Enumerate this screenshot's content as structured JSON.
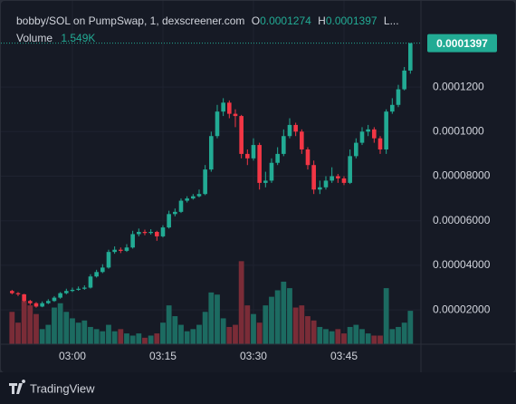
{
  "chart_data": {
    "type": "candlestick",
    "title": "bobby/SOL on PumpSwap, 1, dexscreener.com",
    "ohlc_labels": {
      "open": "O",
      "high": "H",
      "low": "L..."
    },
    "x": [
      "02:50",
      "02:51",
      "02:52",
      "02:53",
      "02:54",
      "02:55",
      "02:56",
      "02:57",
      "02:58",
      "02:59",
      "03:00",
      "03:01",
      "03:02",
      "03:03",
      "03:04",
      "03:05",
      "03:06",
      "03:07",
      "03:08",
      "03:09",
      "03:10",
      "03:11",
      "03:12",
      "03:13",
      "03:14",
      "03:15",
      "03:16",
      "03:17",
      "03:18",
      "03:19",
      "03:20",
      "03:21",
      "03:22",
      "03:23",
      "03:24",
      "03:25",
      "03:26",
      "03:27",
      "03:28",
      "03:29",
      "03:30",
      "03:31",
      "03:32",
      "03:33",
      "03:34",
      "03:35",
      "03:36",
      "03:37",
      "03:38",
      "03:39",
      "03:40",
      "03:41",
      "03:42",
      "03:43",
      "03:44",
      "03:45",
      "03:46",
      "03:47",
      "03:48",
      "03:49",
      "03:50",
      "03:51",
      "03:52",
      "03:53",
      "03:54",
      "03:55",
      "03:56"
    ],
    "open": [
      2.85e-05,
      2.75e-05,
      2.7e-05,
      2.4e-05,
      2.3e-05,
      2.15e-05,
      2.3e-05,
      2.4e-05,
      2.55e-05,
      2.75e-05,
      2.85e-05,
      2.9e-05,
      2.95e-05,
      3e-05,
      3.5e-05,
      3.7e-05,
      3.9e-05,
      4.6e-05,
      4.7e-05,
      4.65e-05,
      4.8e-05,
      5.4e-05,
      5.5e-05,
      5.45e-05,
      5.5e-05,
      5.3e-05,
      5.7e-05,
      6.3e-05,
      6.4e-05,
      6.9e-05,
      7e-05,
      7.1e-05,
      7.2e-05,
      8.3e-05,
      9.8e-05,
      0.000109,
      0.000113,
      0.000108,
      0.000107,
      9e-05,
      8.8e-05,
      9.4e-05,
      7.7e-05,
      7.8e-05,
      8.6e-05,
      9e-05,
      9.8e-05,
      0.000103,
      0.0001,
      9.2e-05,
      8.5e-05,
      7.4e-05,
      7.5e-05,
      7.8e-05,
      8e-05,
      7.9e-05,
      7.7e-05,
      8.9e-05,
      9.5e-05,
      0.0001,
      0.000101,
      9.7e-05,
      9.2e-05,
      0.000109,
      0.000112,
      0.000119,
      0.0001274
    ],
    "high": [
      2.9e-05,
      2.8e-05,
      2.72e-05,
      2.45e-05,
      2.35e-05,
      2.38e-05,
      2.48e-05,
      2.62e-05,
      2.8e-05,
      2.95e-05,
      3e-05,
      3.05e-05,
      3.1e-05,
      3.6e-05,
      3.8e-05,
      4.05e-05,
      4.7e-05,
      4.85e-05,
      4.8e-05,
      4.95e-05,
      5.55e-05,
      5.65e-05,
      5.6e-05,
      5.62e-05,
      5.55e-05,
      5.8e-05,
      6.45e-05,
      6.55e-05,
      7e-05,
      7.1e-05,
      7.2e-05,
      7.4e-05,
      8.5e-05,
      0.0001,
      0.000112,
      0.000115,
      0.000114,
      0.00011,
      0.0001075,
      9.2e-05,
      9.7e-05,
      9.5e-05,
      8.2e-05,
      8.8e-05,
      9.3e-05,
      0.000101,
      0.000106,
      0.000104,
      0.000101,
      9.3e-05,
      8.7e-05,
      7.8e-05,
      8e-05,
      8.4e-05,
      8.1e-05,
      8e-05,
      9.2e-05,
      9.7e-05,
      0.000102,
      0.000103,
      0.000102,
      9.8e-05,
      0.00011,
      0.000115,
      0.000121,
      0.000129,
      0.0001397
    ],
    "low": [
      2.7e-05,
      2.62e-05,
      2.35e-05,
      2.22e-05,
      2.1e-05,
      2.12e-05,
      2.26e-05,
      2.36e-05,
      2.5e-05,
      2.7e-05,
      2.8e-05,
      2.86e-05,
      2.9e-05,
      2.96e-05,
      3.45e-05,
      3.65e-05,
      3.85e-05,
      4.52e-05,
      4.55e-05,
      4.6e-05,
      4.75e-05,
      5.3e-05,
      5.35e-05,
      5.38e-05,
      5.1e-05,
      5.25e-05,
      5.65e-05,
      6.2e-05,
      6.35e-05,
      6.82e-05,
      6.95e-05,
      7.05e-05,
      7.15e-05,
      8.2e-05,
      9.7e-05,
      0.000107,
      0.000106,
      0.000102,
      8.8e-05,
      8.5e-05,
      8.7e-05,
      7.4e-05,
      7.5e-05,
      7.7e-05,
      8.5e-05,
      8.9e-05,
      9.7e-05,
      9.8e-05,
      9e-05,
      8.3e-05,
      7.2e-05,
      7.2e-05,
      7.4e-05,
      7.7e-05,
      7.7e-05,
      7.6e-05,
      7.65e-05,
      8.8e-05,
      9.4e-05,
      9.8e-05,
      9.5e-05,
      9e-05,
      9e-05,
      0.000108,
      0.000111,
      0.0001185,
      0.000126
    ],
    "close": [
      2.75e-05,
      2.7e-05,
      2.4e-05,
      2.3e-05,
      2.15e-05,
      2.3e-05,
      2.4e-05,
      2.55e-05,
      2.75e-05,
      2.85e-05,
      2.9e-05,
      2.95e-05,
      3e-05,
      3.5e-05,
      3.7e-05,
      3.9e-05,
      4.6e-05,
      4.7e-05,
      4.65e-05,
      4.8e-05,
      5.4e-05,
      5.5e-05,
      5.45e-05,
      5.5e-05,
      5.3e-05,
      5.7e-05,
      6.3e-05,
      6.4e-05,
      6.9e-05,
      7e-05,
      7.1e-05,
      7.2e-05,
      8.3e-05,
      9.8e-05,
      0.000109,
      0.000113,
      0.000108,
      0.000107,
      9e-05,
      8.8e-05,
      9.4e-05,
      7.7e-05,
      7.8e-05,
      8.6e-05,
      9e-05,
      9.8e-05,
      0.000103,
      0.0001,
      9.2e-05,
      8.5e-05,
      7.4e-05,
      7.5e-05,
      7.8e-05,
      8e-05,
      7.9e-05,
      7.7e-05,
      8.9e-05,
      9.5e-05,
      0.0001,
      0.000101,
      9.7e-05,
      9.2e-05,
      0.000109,
      0.000112,
      0.000119,
      0.0001274,
      0.0001397
    ],
    "volume": {
      "name": "Volume",
      "last_label": "1.549K",
      "values": [
        1500,
        1000,
        2000,
        1800,
        1400,
        700,
        900,
        1700,
        1900,
        1500,
        1200,
        1000,
        1100,
        800,
        700,
        600,
        900,
        600,
        700,
        500,
        400,
        500,
        300,
        400,
        500,
        1000,
        1800,
        1300,
        900,
        600,
        700,
        900,
        1500,
        2400,
        2300,
        1200,
        800,
        900,
        3850,
        1800,
        1400,
        1000,
        1800,
        2200,
        2500,
        2900,
        2600,
        1700,
        1800,
        1300,
        1100,
        800,
        700,
        600,
        700,
        500,
        800,
        900,
        700,
        500,
        400,
        400,
        2600,
        700,
        800,
        1000,
        1549
      ],
      "ylim": [
        0,
        4200
      ]
    },
    "up_color": "#22ab94",
    "down_color": "#f23645",
    "volume_up_color": "#1c6b61",
    "volume_down_color": "#7a2c37",
    "ylim": [
      4.6e-06,
      0.000155
    ],
    "yticks": [
      {
        "value": 0.00012,
        "label": "0.0001200"
      },
      {
        "value": 0.0001,
        "label": "0.0001000"
      },
      {
        "value": 8e-05,
        "label": "0.00008000"
      },
      {
        "value": 6e-05,
        "label": "0.00006000"
      },
      {
        "value": 4e-05,
        "label": "0.00004000"
      },
      {
        "value": 2e-05,
        "label": "0.00002000"
      }
    ],
    "xticks": [
      "03:00",
      "03:15",
      "03:30",
      "03:45"
    ],
    "grid": true
  },
  "footer": "TradingView"
}
